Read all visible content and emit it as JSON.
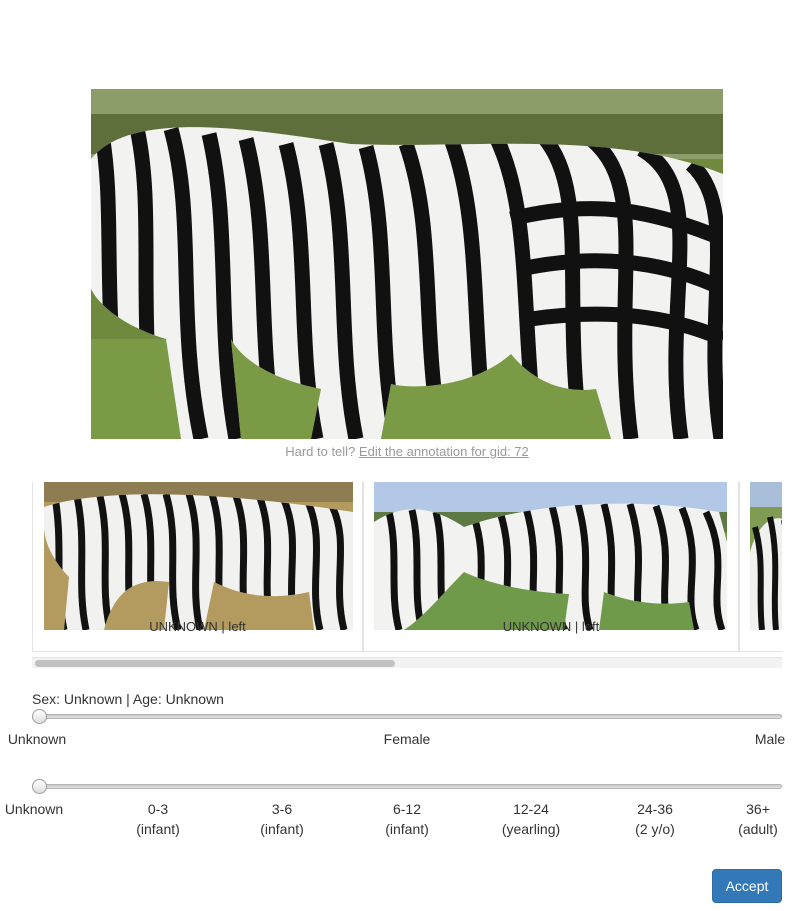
{
  "hint": {
    "prefix": "Hard to tell?",
    "link": "Edit the annotation for gid: 72"
  },
  "thumbnails": [
    {
      "caption": "UNKNOWN | left"
    },
    {
      "caption": "UNKNOWN | left"
    }
  ],
  "status": {
    "text": "Sex: Unknown | Age: Unknown"
  },
  "sex_slider": {
    "labels": [
      "Unknown",
      "Female",
      "Male"
    ],
    "selected_index": 0
  },
  "age_slider": {
    "labels": [
      {
        "range": "Unknown",
        "note": ""
      },
      {
        "range": "0-3",
        "note": "(infant)"
      },
      {
        "range": "3-6",
        "note": "(infant)"
      },
      {
        "range": "6-12",
        "note": "(infant)"
      },
      {
        "range": "12-24",
        "note": "(yearling)"
      },
      {
        "range": "24-36",
        "note": "(2 y/o)"
      },
      {
        "range": "36+",
        "note": "(adult)"
      }
    ],
    "selected_index": 0
  },
  "accept_label": "Accept",
  "colors": {
    "accept_button": "#3379b7",
    "hint_text": "#9a9a9a"
  }
}
